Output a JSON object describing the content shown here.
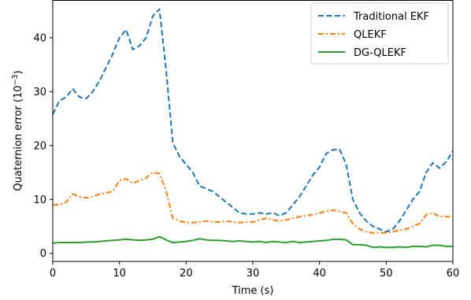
{
  "chart_data": {
    "type": "line",
    "xlabel": "Time (s)",
    "ylabel_base": "Quaternion error (10",
    "ylabel_exp": "−3",
    "ylabel_close": ")",
    "xlim": [
      0,
      60
    ],
    "ylim": [
      -1.5,
      47
    ],
    "xticks": [
      0,
      10,
      20,
      30,
      40,
      50,
      60
    ],
    "yticks": [
      0,
      10,
      20,
      30,
      40
    ],
    "grid": false,
    "legend_position": "top-right",
    "x": [
      0,
      1,
      2,
      3,
      4,
      5,
      6,
      7,
      8,
      9,
      10,
      11,
      12,
      13,
      14,
      15,
      16,
      17,
      18,
      19,
      20,
      21,
      22,
      23,
      24,
      25,
      26,
      27,
      28,
      29,
      30,
      31,
      32,
      33,
      34,
      35,
      36,
      37,
      38,
      39,
      40,
      41,
      42,
      43,
      44,
      45,
      46,
      47,
      48,
      49,
      50,
      51,
      52,
      53,
      54,
      55,
      56,
      57,
      58,
      59,
      60
    ],
    "series": [
      {
        "name": "Traditional EKF",
        "color": "#1f77b4",
        "dash": "dashed",
        "values": [
          25.8,
          28.3,
          29.0,
          30.5,
          29.0,
          28.7,
          30.0,
          32.0,
          34.5,
          37.0,
          40.0,
          41.5,
          37.8,
          38.5,
          40.0,
          44.0,
          45.3,
          34.0,
          20.5,
          18.0,
          16.5,
          15.0,
          12.5,
          12.0,
          11.5,
          10.5,
          9.5,
          8.5,
          7.5,
          7.3,
          7.3,
          7.5,
          7.3,
          7.5,
          7.0,
          7.5,
          9.0,
          10.5,
          12.5,
          14.5,
          16.0,
          18.5,
          19.2,
          19.3,
          16.5,
          10.0,
          7.5,
          6.0,
          5.0,
          4.5,
          4.0,
          4.5,
          6.0,
          8.0,
          10.0,
          11.5,
          15.0,
          16.8,
          15.8,
          17.0,
          19.0
        ]
      },
      {
        "name": "QLEKF",
        "color": "#ff7f0e",
        "dash": "dashdot",
        "values": [
          9.0,
          9.0,
          9.5,
          11.0,
          10.5,
          10.3,
          10.5,
          11.0,
          11.2,
          11.5,
          13.5,
          13.8,
          13.0,
          13.5,
          14.0,
          15.0,
          14.8,
          11.5,
          6.5,
          6.0,
          5.7,
          5.7,
          5.8,
          6.0,
          5.8,
          5.8,
          6.0,
          5.8,
          5.7,
          5.8,
          5.8,
          6.2,
          6.5,
          6.2,
          6.0,
          6.2,
          6.5,
          6.8,
          7.0,
          7.2,
          7.5,
          7.8,
          8.0,
          7.8,
          7.5,
          5.5,
          4.5,
          4.0,
          3.8,
          3.8,
          3.8,
          4.0,
          4.3,
          4.5,
          5.0,
          5.5,
          7.2,
          7.5,
          6.8,
          6.8,
          6.8
        ]
      },
      {
        "name": "DG-QLEKF",
        "color": "#2ca02c",
        "dash": "solid",
        "values": [
          1.9,
          2.0,
          2.0,
          2.0,
          2.0,
          2.1,
          2.1,
          2.2,
          2.3,
          2.4,
          2.5,
          2.6,
          2.5,
          2.4,
          2.5,
          2.6,
          3.1,
          2.5,
          2.0,
          2.1,
          2.2,
          2.4,
          2.7,
          2.5,
          2.4,
          2.4,
          2.3,
          2.2,
          2.3,
          2.2,
          2.1,
          2.2,
          2.0,
          2.2,
          2.1,
          2.0,
          2.2,
          2.0,
          2.1,
          2.2,
          2.3,
          2.4,
          2.6,
          2.6,
          2.5,
          1.6,
          1.6,
          1.5,
          1.1,
          1.2,
          1.1,
          1.1,
          1.2,
          1.1,
          1.3,
          1.3,
          1.2,
          1.5,
          1.5,
          1.3,
          1.3
        ]
      }
    ]
  }
}
